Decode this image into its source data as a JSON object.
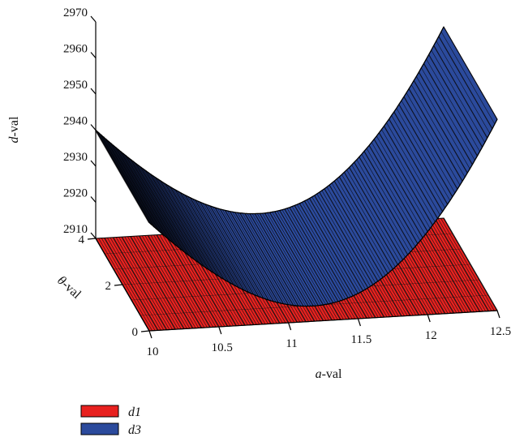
{
  "chart_data": {
    "type": "surface3d",
    "axes": {
      "x": {
        "label_var": "a",
        "label_suffix": "-val",
        "range": [
          10,
          12.5
        ],
        "ticks": [
          "10",
          "10.5",
          "11",
          "11.5",
          "12",
          "12.5"
        ],
        "tick_values": [
          10,
          10.5,
          11,
          11.5,
          12,
          12.5
        ]
      },
      "y": {
        "label_var": "θ",
        "label_suffix": "-val",
        "range": [
          0,
          4
        ],
        "ticks": [
          "0",
          "2",
          "4"
        ],
        "tick_values": [
          0,
          2,
          4
        ]
      },
      "z": {
        "label_var": "d",
        "label_suffix": "-val",
        "range": [
          2910,
          2970
        ],
        "ticks": [
          "2910",
          "2920",
          "2930",
          "2940",
          "2950",
          "2960",
          "2970"
        ],
        "tick_values": [
          2910,
          2920,
          2930,
          2940,
          2950,
          2960,
          2970
        ]
      }
    },
    "series": [
      {
        "name": "d1",
        "color": "#e8211f",
        "shape": "flat plane at d = 2910",
        "z": 2910
      },
      {
        "name": "d3",
        "color": "#2b4a9c",
        "shape": "parabolic surface, constant in θ",
        "a": [
          10,
          10.5,
          11,
          11.5,
          12,
          12.5
        ],
        "z": [
          2940,
          2924,
          2915,
          2917,
          2933,
          2963
        ]
      }
    ],
    "legend": {
      "placement": "bottom-left"
    },
    "grid": false
  }
}
